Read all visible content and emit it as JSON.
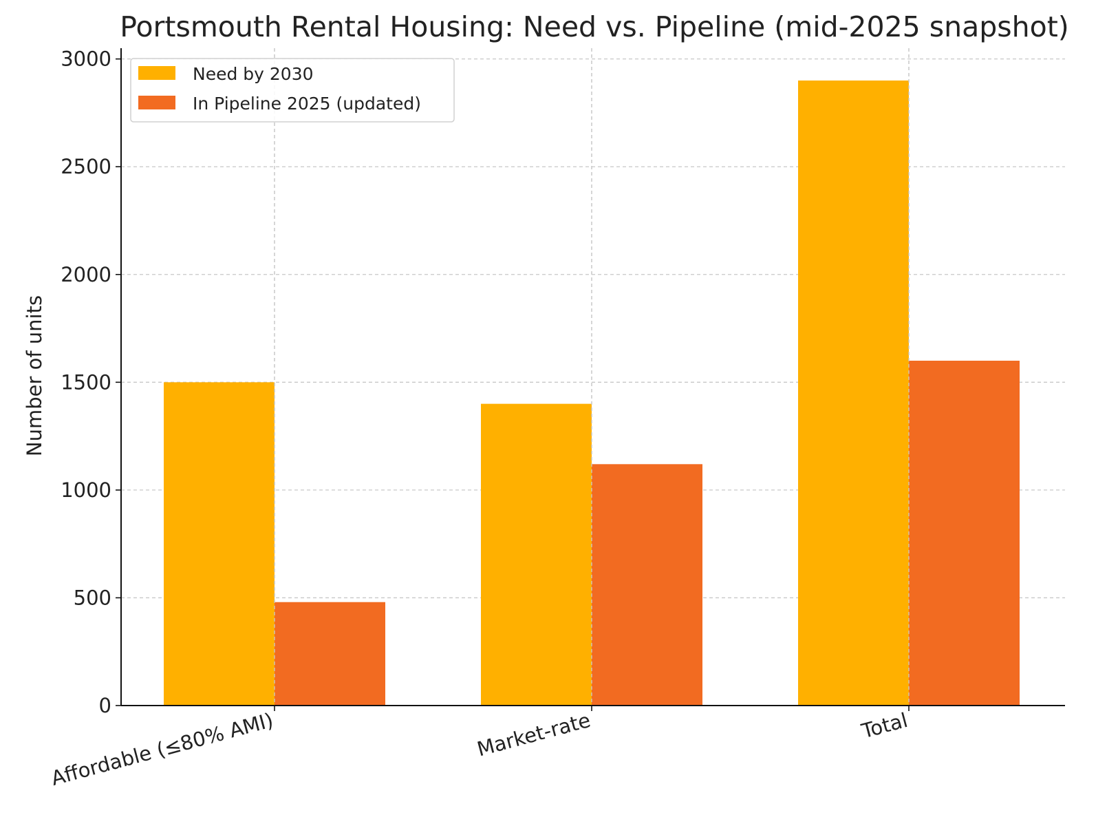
{
  "chart_data": {
    "type": "bar",
    "title": "Portsmouth Rental Housing: Need vs. Pipeline (mid-2025 snapshot)",
    "xlabel": "",
    "ylabel": "Number of units",
    "categories": [
      "Affordable (≤80% AMI)",
      "Market-rate",
      "Total"
    ],
    "series": [
      {
        "name": "Need by 2030",
        "color": "#FFB000",
        "values": [
          1500,
          1400,
          2900
        ]
      },
      {
        "name": "In Pipeline 2025 (updated)",
        "color": "#F26B21",
        "values": [
          480,
          1120,
          1600
        ]
      }
    ],
    "ylim": [
      0,
      3050
    ],
    "yticks": [
      0,
      500,
      1000,
      1500,
      2000,
      2500,
      3000
    ],
    "grid": true,
    "legend_position": "top-left"
  }
}
